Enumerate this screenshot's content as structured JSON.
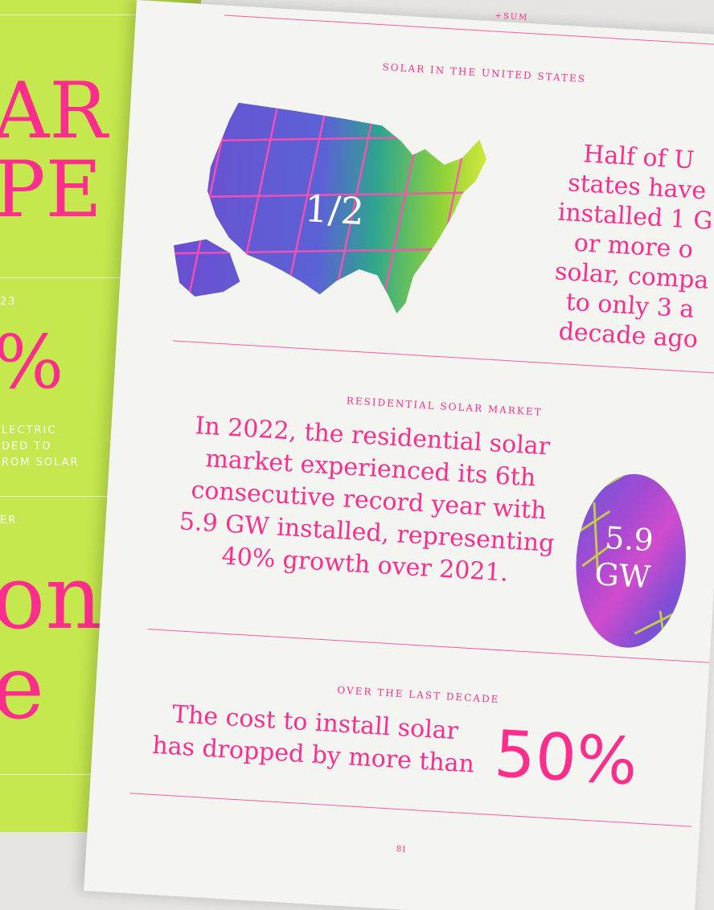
{
  "left_page": {
    "headline_line1": "AR",
    "headline_line2": "PE",
    "small_label_1": "23",
    "big_percent": "%",
    "caption_line1": "LECTRIC",
    "caption_line2": "DED TO",
    "caption_line3": "ROM SOLAR",
    "small_label_2": "ER",
    "big_word_1": "on",
    "big_word_2": "e"
  },
  "right_page": {
    "header": "+SUM",
    "section1": {
      "label": "SOLAR IN THE UNITED STATES",
      "map_figure": "1/2",
      "text_lines": [
        "Half of U",
        "states have",
        "installed 1 G",
        "or more o",
        "solar, compa",
        "to only 3 a",
        "decade ago"
      ]
    },
    "section2": {
      "label": "RESIDENTIAL SOLAR MARKET",
      "text_lines": [
        "In 2022, the residential solar",
        "market experienced its 6th",
        "consecutive record year with",
        "5.9 GW installed, representing",
        "40% growth over 2021."
      ],
      "badge_value": "5.9",
      "badge_unit": "GW"
    },
    "section3": {
      "label": "OVER THE LAST DECADE",
      "text_lines": [
        "The cost to install solar",
        "has dropped by more than"
      ],
      "big_value": "50%"
    },
    "page_number": "81"
  },
  "colors": {
    "pink": "#ff2e8c",
    "lime": "#c4e84e",
    "paper": "#f4f4f1"
  }
}
